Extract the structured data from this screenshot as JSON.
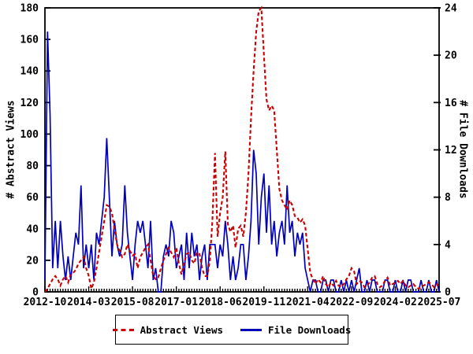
{
  "chart_data": {
    "type": "line",
    "title": "",
    "x_axis": {
      "start": "2012-10",
      "end": "2025-07",
      "interval": "monthly",
      "tick_labels": [
        "2012-10",
        "2014-03",
        "2015-08",
        "2017-01",
        "2018-06",
        "2019-11",
        "2021-04",
        "2022-09",
        "2024-02",
        "2025-07"
      ],
      "tick_month_step": 17
    },
    "y_left": {
      "label": "# Abstract Views",
      "min": 0,
      "max": 180,
      "ticks": [
        0,
        20,
        40,
        60,
        80,
        100,
        120,
        140,
        160,
        180
      ]
    },
    "y_right": {
      "label": "# File Downloads",
      "min": 0,
      "max": 24,
      "ticks": [
        0,
        4,
        8,
        12,
        16,
        20,
        24
      ]
    },
    "grid": false,
    "legend_position": "bottom-center",
    "frame_color": "#000000",
    "series": [
      {
        "name": "Abstract Views",
        "axis": "left",
        "color": "#cc0000",
        "style": "dashed",
        "values": [
          0,
          2,
          5,
          8,
          10,
          8,
          4,
          8,
          10,
          6,
          11,
          12,
          14,
          18,
          20,
          22,
          15,
          10,
          2,
          6,
          15,
          25,
          35,
          45,
          55,
          54,
          50,
          40,
          30,
          26,
          22,
          24,
          30,
          26,
          23,
          24,
          15,
          22,
          25,
          28,
          30,
          20,
          10,
          8,
          9,
          15,
          20,
          24,
          28,
          25,
          22,
          28,
          18,
          11,
          18,
          24,
          25,
          20,
          18,
          25,
          24,
          15,
          10,
          10,
          20,
          45,
          88,
          35,
          50,
          60,
          89,
          43,
          38,
          42,
          28,
          40,
          42,
          35,
          50,
          75,
          110,
          140,
          165,
          178,
          180,
          150,
          122,
          115,
          118,
          115,
          90,
          65,
          58,
          55,
          52,
          58,
          55,
          48,
          47,
          44,
          46,
          42,
          27,
          12,
          8,
          5,
          8,
          6,
          10,
          5,
          3,
          6,
          4,
          7,
          4,
          3,
          5,
          8,
          10,
          15,
          13,
          5,
          7,
          6,
          3,
          4,
          6,
          9,
          10,
          5,
          3,
          4,
          7,
          9,
          4,
          5,
          6,
          7,
          5,
          7,
          4,
          3,
          4,
          5,
          3,
          2,
          3,
          4,
          5,
          6,
          5,
          3,
          5,
          3
        ]
      },
      {
        "name": "File Downloads",
        "axis": "right",
        "color": "#0000bb",
        "style": "solid",
        "values": [
          1,
          22,
          15,
          2,
          6,
          2,
          6,
          3,
          1,
          3,
          1,
          3,
          5,
          4,
          9,
          2,
          4,
          2,
          4,
          1,
          5,
          4,
          6,
          8,
          13,
          8,
          3,
          6,
          4,
          3,
          4,
          9,
          5,
          3,
          1,
          4,
          6,
          5,
          6,
          4,
          2,
          6,
          1,
          2,
          0,
          0,
          3,
          4,
          3,
          6,
          5,
          2,
          3,
          4,
          1,
          5,
          2,
          5,
          3,
          4,
          1,
          3,
          4,
          1,
          4,
          4,
          4,
          2,
          4,
          3,
          6,
          4,
          1,
          3,
          1,
          2,
          4,
          4,
          1,
          3,
          6,
          12,
          10,
          4,
          8,
          10,
          5,
          9,
          4,
          6,
          3,
          5,
          6,
          4,
          9,
          5,
          6,
          3,
          5,
          4,
          5,
          2,
          1,
          0,
          1,
          1,
          0,
          0,
          1,
          1,
          0,
          1,
          1,
          0,
          0,
          1,
          0,
          1,
          0,
          1,
          0,
          1,
          2,
          0,
          0,
          1,
          0,
          1,
          1,
          0,
          0,
          0,
          1,
          1,
          0,
          0,
          1,
          0,
          0,
          1,
          0,
          1,
          1,
          0,
          0,
          0,
          1,
          0,
          0,
          1,
          0,
          0,
          1,
          0
        ]
      }
    ]
  },
  "legend": {
    "abstract_views_label": "Abstract Views",
    "file_downloads_label": "File Downloads"
  }
}
